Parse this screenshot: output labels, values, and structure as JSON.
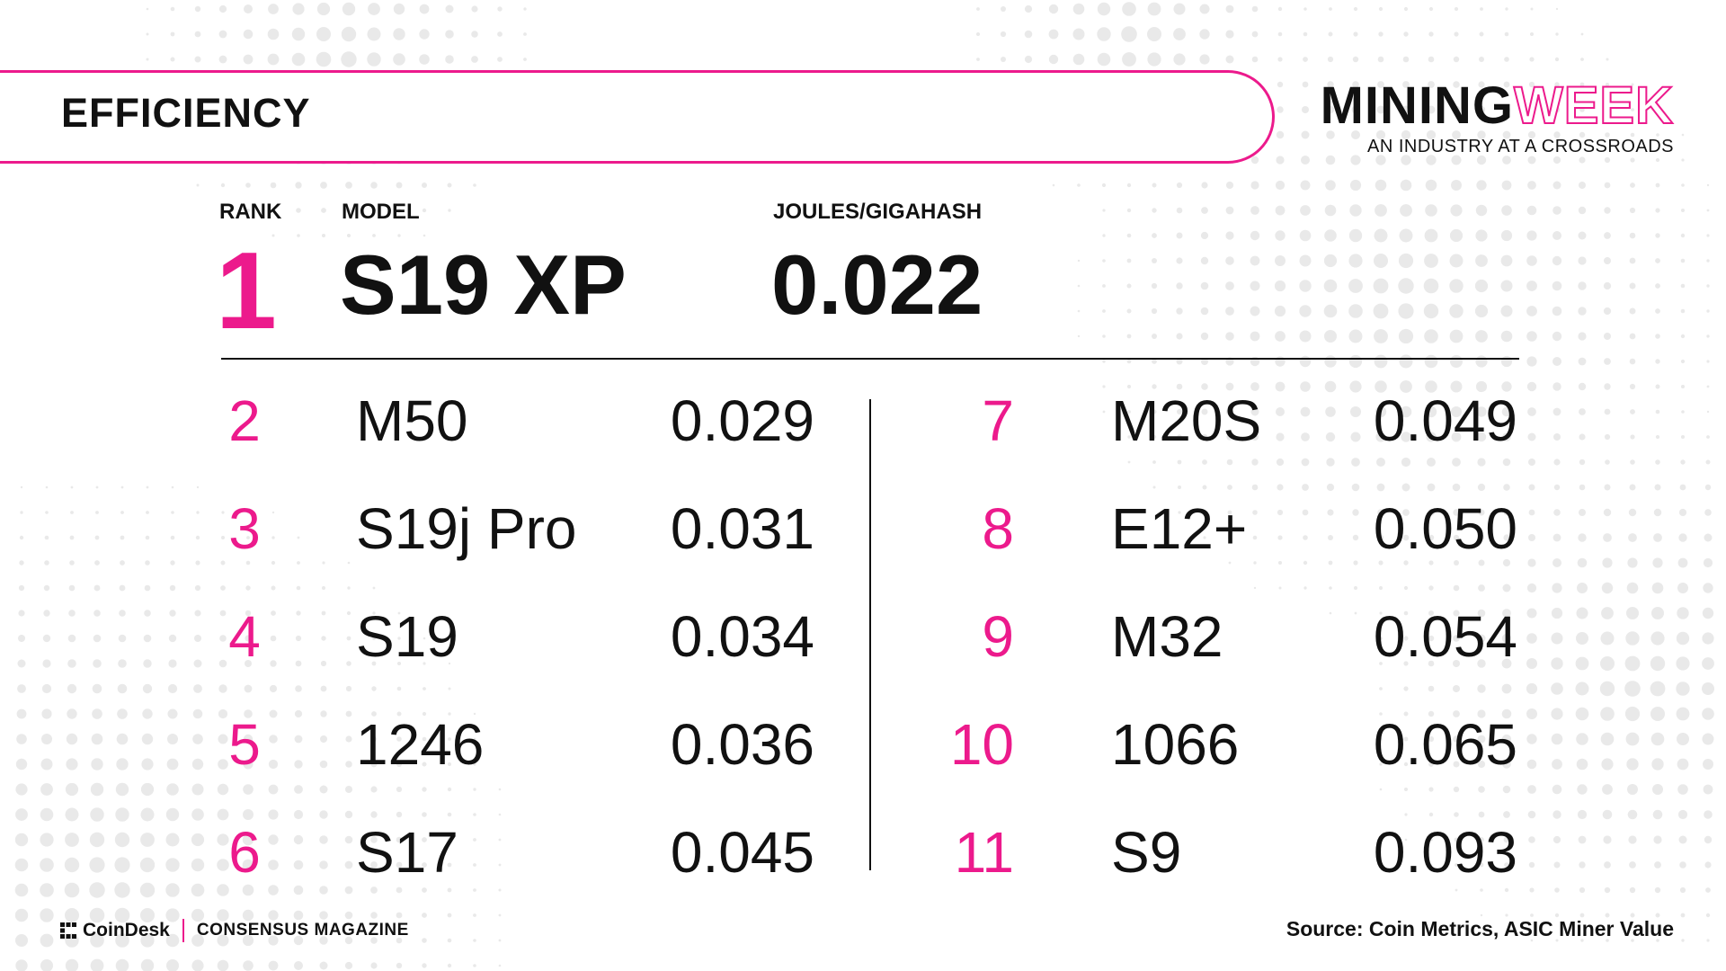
{
  "header": {
    "section_title": "EFFICIENCY"
  },
  "brand": {
    "part1": "MINING",
    "part2": "WEEK",
    "tagline": "AN INDUSTRY AT A CROSSROADS"
  },
  "footer": {
    "coindesk": "CoinDesk",
    "consensus": "CONSENSUS MAGAZINE",
    "source": "Source: Coin Metrics, ASIC Miner Value"
  },
  "colors": {
    "accent": "#ec1a8c",
    "text": "#111111",
    "dots": "#e9e9e9"
  },
  "chart_data": {
    "type": "table",
    "title": "EFFICIENCY",
    "columns": [
      "RANK",
      "MODEL",
      "JOULES/GIGAHASH"
    ],
    "top": {
      "rank": "1",
      "model": "S19 XP",
      "value": "0.022"
    },
    "rows_left": [
      {
        "rank": "2",
        "model": "M50",
        "value": "0.029"
      },
      {
        "rank": "3",
        "model": "S19j Pro",
        "value": "0.031"
      },
      {
        "rank": "4",
        "model": "S19",
        "value": "0.034"
      },
      {
        "rank": "5",
        "model": "1246",
        "value": "0.036"
      },
      {
        "rank": "6",
        "model": "S17",
        "value": "0.045"
      }
    ],
    "rows_right": [
      {
        "rank": "7",
        "model": "M20S",
        "value": "0.049"
      },
      {
        "rank": "8",
        "model": "E12+",
        "value": "0.050"
      },
      {
        "rank": "9",
        "model": "M32",
        "value": "0.054"
      },
      {
        "rank": "10",
        "model": "1066",
        "value": "0.065"
      },
      {
        "rank": "11",
        "model": "S9",
        "value": "0.093"
      }
    ]
  }
}
